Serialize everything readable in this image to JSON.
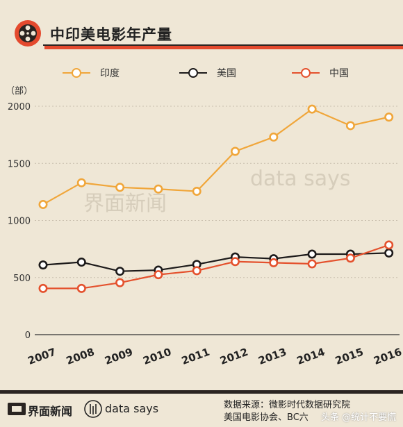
{
  "header": {
    "title": "中印美电影年产量",
    "accent_color": "#e44a2e"
  },
  "legend": [
    {
      "label": "印度",
      "color": "#f0a63a"
    },
    {
      "label": "美国",
      "color": "#1c1a1a"
    },
    {
      "label": "中国",
      "color": "#e4512d"
    }
  ],
  "watermark": {
    "left_text": "界面新闻",
    "right_text": "data says"
  },
  "footer": {
    "brand": "界面新闻",
    "data_says": "data says",
    "source_line1": "数据来源：微影时代数据研究院",
    "source_line2": "美国电影协会、BC六",
    "attribution": "头条 @统计不要慌"
  },
  "chart_data": {
    "type": "line",
    "ylabel": "（部）",
    "ylim": [
      0,
      2000
    ],
    "yticks": [
      0,
      500,
      1000,
      1500,
      2000
    ],
    "categories": [
      "2007",
      "2008",
      "2009",
      "2010",
      "2011",
      "2012",
      "2013",
      "2014",
      "2015",
      "2016"
    ],
    "grid": true,
    "series": [
      {
        "name": "印度",
        "color": "#f0a63a",
        "values": [
          1140,
          1330,
          1290,
          1275,
          1255,
          1605,
          1730,
          1975,
          1830,
          1905
        ]
      },
      {
        "name": "美国",
        "color": "#1c1a1a",
        "values": [
          610,
          635,
          555,
          565,
          615,
          680,
          665,
          705,
          705,
          715
        ]
      },
      {
        "name": "中国",
        "color": "#e4512d",
        "values": [
          405,
          405,
          455,
          525,
          560,
          640,
          630,
          620,
          670,
          785
        ]
      }
    ]
  }
}
